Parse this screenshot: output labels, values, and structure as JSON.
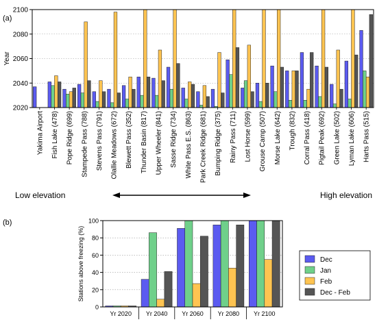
{
  "chart_data": [
    {
      "panel": "(a)",
      "type": "bar",
      "ylabel": "Year",
      "ylim": [
        2020,
        2100
      ],
      "yticks": [
        2020,
        2040,
        2060,
        2080,
        2100
      ],
      "grid": "horizontal dotted",
      "categories": [
        "Yakima Airport",
        "Fish Lake (478)",
        "Pope Ridge (699)",
        "Stampede Pass (788)",
        "Stevens Pass (791)",
        "Olallie Meadows (672)",
        "Blewett Pass (352)",
        "Thunder Basin (817)",
        "Upper Wheeler (841)",
        "Sasse Ridge (734)",
        "White Pass E.S. (863)",
        "Park Creek Ridge (681)",
        "Bumping Ridge (375)",
        "Rainy Pass (711)",
        "Lost Horse (599)",
        "Grouse Camp (507)",
        "Morse Lake (642)",
        "Trough (832)",
        "Corral Pass (418)",
        "Pigtail Peak (692)",
        "Green Lake (502)",
        "Lyman Lake (606)",
        "Harts Pass (515)"
      ],
      "series": [
        {
          "name": "Dec",
          "values": [
            2037,
            2041,
            2035,
            2039,
            2033,
            2035,
            2038,
            2045,
            2044,
            2053,
            2036,
            2033,
            2035,
            2059,
            2036,
            2040,
            2054,
            2050,
            2065,
            2054,
            2039,
            2058,
            2083
          ]
        },
        {
          "name": "Jan",
          "values": [
            null,
            2038,
            2031,
            2032,
            2025,
            2024,
            2027,
            2030,
            2030,
            2035,
            2027,
            2022,
            2021,
            2047,
            2042,
            2025,
            2033,
            2026,
            2026,
            2029,
            2023,
            2027,
            2050
          ]
        },
        {
          "name": "Feb",
          "values": [
            null,
            2046,
            2033,
            2090,
            2042,
            2098,
            2045,
            2100,
            2067,
            2100,
            2041,
            2038,
            2065,
            2100,
            2071,
            2100,
            2100,
            2050,
            2035,
            2100,
            2067,
            2100,
            2045
          ]
        },
        {
          "name": "Dec - Feb",
          "values": [
            null,
            2041,
            2036,
            2042,
            2033,
            2032,
            2035,
            2045,
            2042,
            2056,
            2039,
            2029,
            2032,
            2069,
            2033,
            2040,
            2053,
            2050,
            2065,
            2053,
            2035,
            2063,
            2096
          ]
        }
      ],
      "arrow_labels": {
        "left": "Low elevation",
        "right": "High elevation"
      }
    },
    {
      "panel": "(b)",
      "type": "bar",
      "ylabel": "Stations above freezing (%)",
      "ylim": [
        0,
        100
      ],
      "yticks": [
        0,
        20,
        40,
        60,
        80,
        100
      ],
      "grid": "horizontal dotted",
      "legend": "right",
      "categories": [
        "Yr 2020",
        "Yr 2040",
        "Yr 2060",
        "Yr 2080",
        "Yr 2100"
      ],
      "series": [
        {
          "name": "Dec",
          "values": [
            0,
            32,
            91,
            95,
            100
          ]
        },
        {
          "name": "Jan",
          "values": [
            0,
            86,
            100,
            100,
            100
          ]
        },
        {
          "name": "Feb",
          "values": [
            0,
            9,
            27,
            45,
            55
          ]
        },
        {
          "name": "Dec - Feb",
          "values": [
            0,
            41,
            82,
            95,
            100
          ]
        }
      ]
    }
  ],
  "colors": {
    "Dec": "#5b5bf0",
    "Jan": "#6fd08a",
    "Feb": "#ffc451",
    "Dec - Feb": "#555555"
  },
  "labels": {
    "panel_a": "(a)",
    "panel_b": "(b)"
  }
}
